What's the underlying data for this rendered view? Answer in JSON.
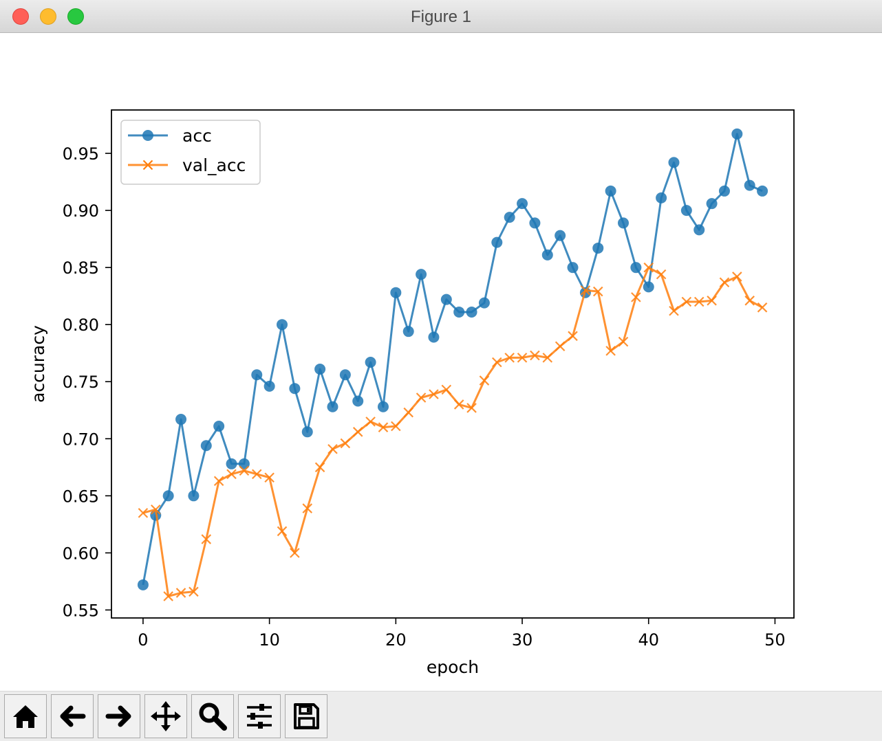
{
  "window": {
    "title": "Figure 1"
  },
  "toolbar": {
    "buttons": [
      {
        "name": "home-icon"
      },
      {
        "name": "back-arrow-icon"
      },
      {
        "name": "forward-arrow-icon"
      },
      {
        "name": "pan-icon"
      },
      {
        "name": "zoom-icon"
      },
      {
        "name": "configure-subplots-icon"
      },
      {
        "name": "save-icon"
      }
    ]
  },
  "chart_data": {
    "type": "line",
    "title": "",
    "xlabel": "epoch",
    "ylabel": "accuracy",
    "xlim": [
      -2.5,
      51.5
    ],
    "ylim": [
      0.543,
      0.988
    ],
    "xticks": [
      0,
      10,
      20,
      30,
      40,
      50
    ],
    "yticks": [
      0.55,
      0.6,
      0.65,
      0.7,
      0.75,
      0.8,
      0.85,
      0.9,
      0.95
    ],
    "ytick_labels": [
      "0.55",
      "0.60",
      "0.65",
      "0.70",
      "0.75",
      "0.80",
      "0.85",
      "0.90",
      "0.95"
    ],
    "grid": false,
    "legend": "upper-left",
    "x": [
      0,
      1,
      2,
      3,
      4,
      5,
      6,
      7,
      8,
      9,
      10,
      11,
      12,
      13,
      14,
      15,
      16,
      17,
      18,
      19,
      20,
      21,
      22,
      23,
      24,
      25,
      26,
      27,
      28,
      29,
      30,
      31,
      32,
      33,
      34,
      35,
      36,
      37,
      38,
      39,
      40,
      41,
      42,
      43,
      44,
      45,
      46,
      47,
      48,
      49
    ],
    "series": [
      {
        "name": "acc",
        "color": "#1f77b4",
        "marker": "circle",
        "values": [
          0.572,
          0.633,
          0.65,
          0.717,
          0.65,
          0.694,
          0.711,
          0.678,
          0.678,
          0.756,
          0.746,
          0.8,
          0.744,
          0.706,
          0.761,
          0.728,
          0.756,
          0.733,
          0.767,
          0.728,
          0.828,
          0.794,
          0.844,
          0.789,
          0.822,
          0.811,
          0.811,
          0.819,
          0.872,
          0.894,
          0.906,
          0.889,
          0.861,
          0.878,
          0.85,
          0.828,
          0.867,
          0.917,
          0.889,
          0.85,
          0.833,
          0.911,
          0.942,
          0.9,
          0.883,
          0.906,
          0.917,
          0.967,
          0.922,
          0.917
        ]
      },
      {
        "name": "val_acc",
        "color": "#ff7f0e",
        "marker": "x",
        "values": [
          0.635,
          0.638,
          0.562,
          0.565,
          0.566,
          0.612,
          0.663,
          0.669,
          0.672,
          0.669,
          0.666,
          0.619,
          0.6,
          0.639,
          0.675,
          0.691,
          0.696,
          0.706,
          0.715,
          0.71,
          0.711,
          0.723,
          0.736,
          0.739,
          0.743,
          0.73,
          0.727,
          0.751,
          0.767,
          0.771,
          0.771,
          0.773,
          0.771,
          0.781,
          0.79,
          0.83,
          0.829,
          0.777,
          0.785,
          0.824,
          0.85,
          0.844,
          0.812,
          0.82,
          0.82,
          0.821,
          0.837,
          0.842,
          0.821,
          0.815
        ]
      }
    ]
  }
}
